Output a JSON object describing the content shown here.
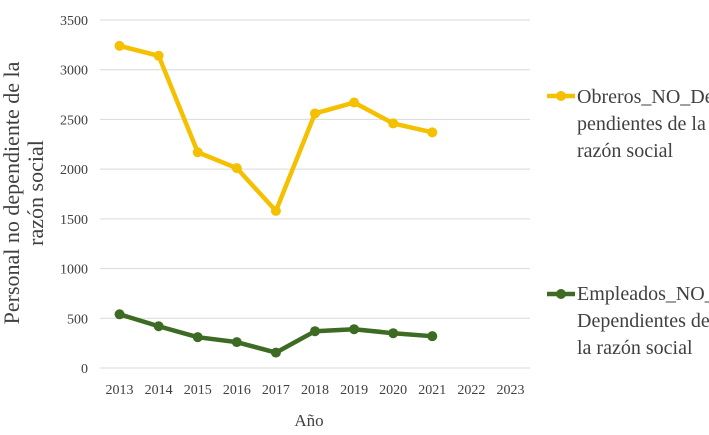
{
  "chart_data": {
    "type": "line",
    "xlabel": "Año",
    "ylabel": "Personal no dependiente de la razón social",
    "categories": [
      "2013",
      "2014",
      "2015",
      "2016",
      "2017",
      "2018",
      "2019",
      "2020",
      "2021",
      "2022",
      "2023"
    ],
    "ylim": [
      0,
      3500
    ],
    "yticks": [
      0,
      500,
      1000,
      1500,
      2000,
      2500,
      3000,
      3500
    ],
    "grid": true,
    "legend_position": "right",
    "series": [
      {
        "name": "Obreros_NO_Dependientes de la razón social",
        "legend_lines": [
          "Obreros_NO_De",
          "pendientes de la",
          "razón social"
        ],
        "color": "#F5C000",
        "values": [
          3240,
          3140,
          2170,
          2010,
          1580,
          2560,
          2670,
          2460,
          2370,
          null,
          null
        ]
      },
      {
        "name": "Empleados_NO_Dependientes de la razón social",
        "legend_lines": [
          "Empleados_NO_",
          "Dependientes de",
          "la razón social"
        ],
        "color": "#3E6B24",
        "values": [
          540,
          420,
          310,
          260,
          155,
          370,
          390,
          350,
          320,
          null,
          null
        ]
      }
    ]
  }
}
